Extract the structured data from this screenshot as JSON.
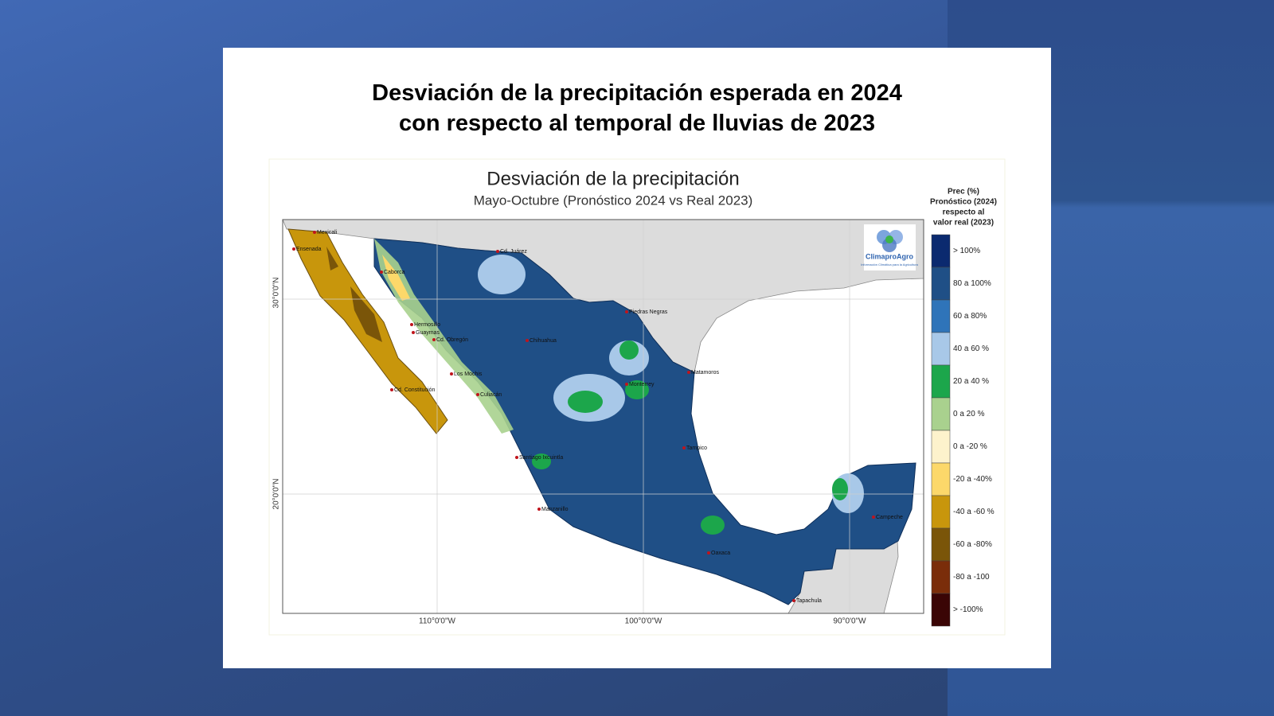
{
  "slide": {
    "title_lines": [
      "Desviación de la precipitación esperada en 2024",
      "con respecto al temporal de lluvias de 2023"
    ]
  },
  "map": {
    "title": "Desviación de la precipitación",
    "subtitle": "Mayo-Octubre (Pronóstico 2024 vs Real 2023)",
    "lat_labels": [
      "30°0'0\"N",
      "20°0'0\"N"
    ],
    "lon_labels": [
      "110°0'0\"W",
      "100°0'0\"W",
      "90°0'0\"W"
    ],
    "logo": {
      "name": "ClimaproAgro",
      "tagline": "Información Climática para la Agricultura"
    },
    "cities": [
      "Mexicali",
      "Ensenada",
      "Caborca",
      "Cd. Juárez",
      "Hermosillo",
      "Guaymas",
      "Cd. Obregón",
      "Los Mochis",
      "Culiacán",
      "Cd. Constitución",
      "Chihuahua",
      "Piedras Negras",
      "Monterrey",
      "Matamoros",
      "Tampico",
      "Santiago Ixcuintla",
      "Manzanillo",
      "Oaxaca",
      "Campeche",
      "Tapachula"
    ]
  },
  "legend": {
    "title_lines": [
      "Prec (%)",
      "Pronóstico (2024)",
      "respecto al",
      "valor real (2023)"
    ],
    "items": [
      {
        "label": "> 100%",
        "color": "#0b2a6f"
      },
      {
        "label": "80 a 100%",
        "color": "#1f4f86"
      },
      {
        "label": "60 a 80%",
        "color": "#2f74b9"
      },
      {
        "label": "40 a 60 %",
        "color": "#a8c8e8"
      },
      {
        "label": "20 a 40 %",
        "color": "#1ca64b"
      },
      {
        "label": "0 a 20 %",
        "color": "#a9d18e"
      },
      {
        "label": "0 a -20 %",
        "color": "#fdf2cc"
      },
      {
        "label": "-20 a -40%",
        "color": "#fcd86a"
      },
      {
        "label": "-40 a -60 %",
        "color": "#c8960c"
      },
      {
        "label": "-60 a -80%",
        "color": "#7a5509"
      },
      {
        "label": "-80 a -100",
        "color": "#7a2d0a"
      },
      {
        "label": "> -100%",
        "color": "#3a0505"
      }
    ]
  }
}
